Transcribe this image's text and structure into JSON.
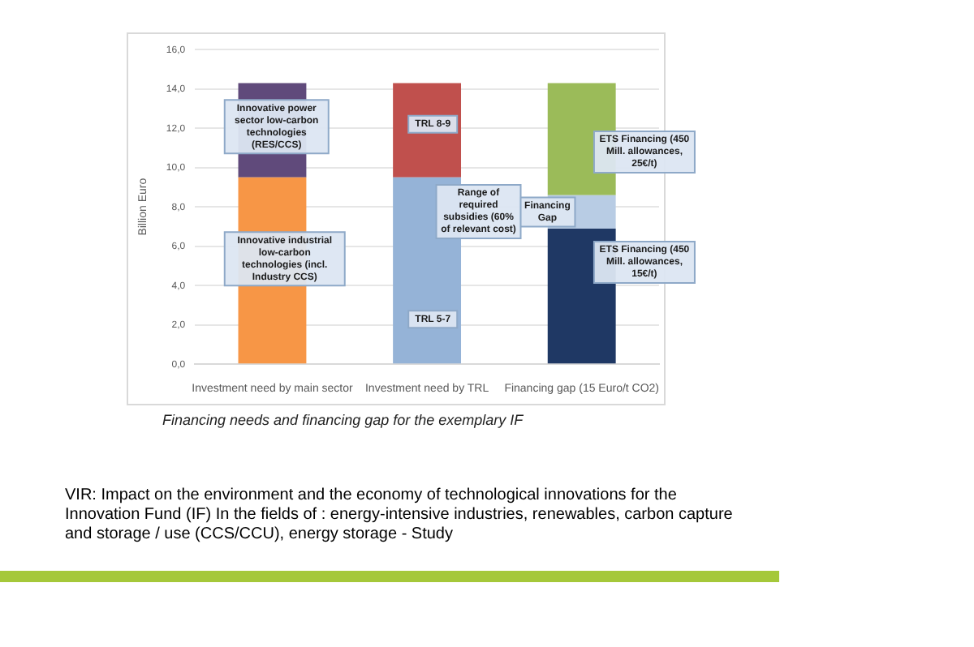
{
  "chart_data": {
    "type": "bar",
    "stacked": true,
    "ylabel": "Billion Euro",
    "categories": [
      "Investment need by main sector",
      "Investment need by TRL",
      "Financing gap (15 Euro/t CO2)"
    ],
    "series": [
      {
        "color": "#f79646",
        "values": [
          9.5,
          null,
          null
        ]
      },
      {
        "color": "#604a7b",
        "values": [
          4.8,
          null,
          null
        ]
      },
      {
        "color": "#95b3d7",
        "values": [
          null,
          9.5,
          null
        ]
      },
      {
        "color": "#c0504d",
        "values": [
          null,
          4.8,
          null
        ]
      },
      {
        "color": "#1f3864",
        "values": [
          null,
          null,
          6.9
        ]
      },
      {
        "color": "#b8cce4",
        "values": [
          null,
          null,
          1.7
        ]
      },
      {
        "color": "#9bbb59",
        "values": [
          null,
          null,
          5.7
        ]
      }
    ],
    "ylim": [
      0,
      16
    ],
    "yticks": [
      {
        "value": 0,
        "label": "0,0"
      },
      {
        "value": 2,
        "label": "2,0"
      },
      {
        "value": 4,
        "label": "4,0"
      },
      {
        "value": 6,
        "label": "6,0"
      },
      {
        "value": 8,
        "label": "8,0"
      },
      {
        "value": 10,
        "label": "10,0"
      },
      {
        "value": 12,
        "label": "12,0"
      },
      {
        "value": 14,
        "label": "14,0"
      },
      {
        "value": 16,
        "label": "16,0"
      }
    ],
    "grid": "y",
    "legend": false,
    "annotations": [
      "Innovative power sector low-carbon technologies (RES/CCS)",
      "Innovative industrial low-carbon technologies (incl. Industry CCS)",
      "TRL 8-9",
      "TRL 5-7",
      "Financing Gap",
      "ETS Financing (450 Mill. allowances, 25€/t)",
      "ETS Financing (450 Mill. allowances, 15€/t)",
      "Range of required subsidies (60% of relevant cost)",
      "Financing needs and financing gap for the exemplary IF",
      "VIR: Impact on the environment and  the economy of technological innovations for the Innovation Fund (IF) In the fields of : energy-intensive industries, renewables, carbon capture and storage / use (CCS/CCU), energy storage - Study"
    ]
  }
}
